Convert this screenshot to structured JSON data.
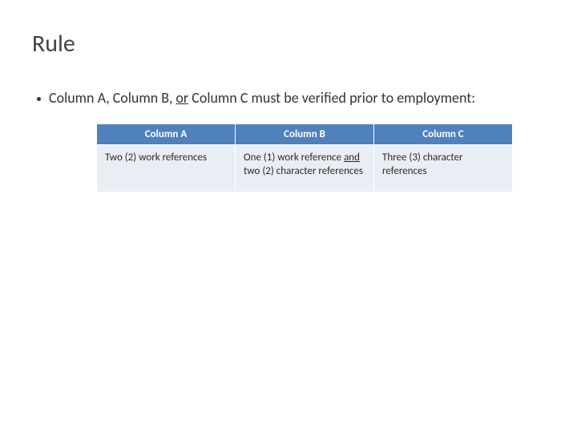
{
  "title": "Rule",
  "bullet": {
    "pre": "Column A, Column B, ",
    "or": "or",
    "post": " Column C must be verified prior to employment:"
  },
  "table": {
    "type": "table",
    "header_bg": "#4f81bd",
    "header_fg": "#ffffff",
    "row_bg": "#e9edf4",
    "border_color": "#ffffff",
    "font_size_header": 13,
    "font_size_cell": 13,
    "columns": [
      "Column A",
      "Column B",
      "Column C"
    ],
    "rows": [
      {
        "a": "Two (2) work references",
        "b_pre": "One (1) work reference ",
        "b_and": "and",
        "b_post": " two (2) character references",
        "c": "Three (3) character references"
      }
    ]
  }
}
